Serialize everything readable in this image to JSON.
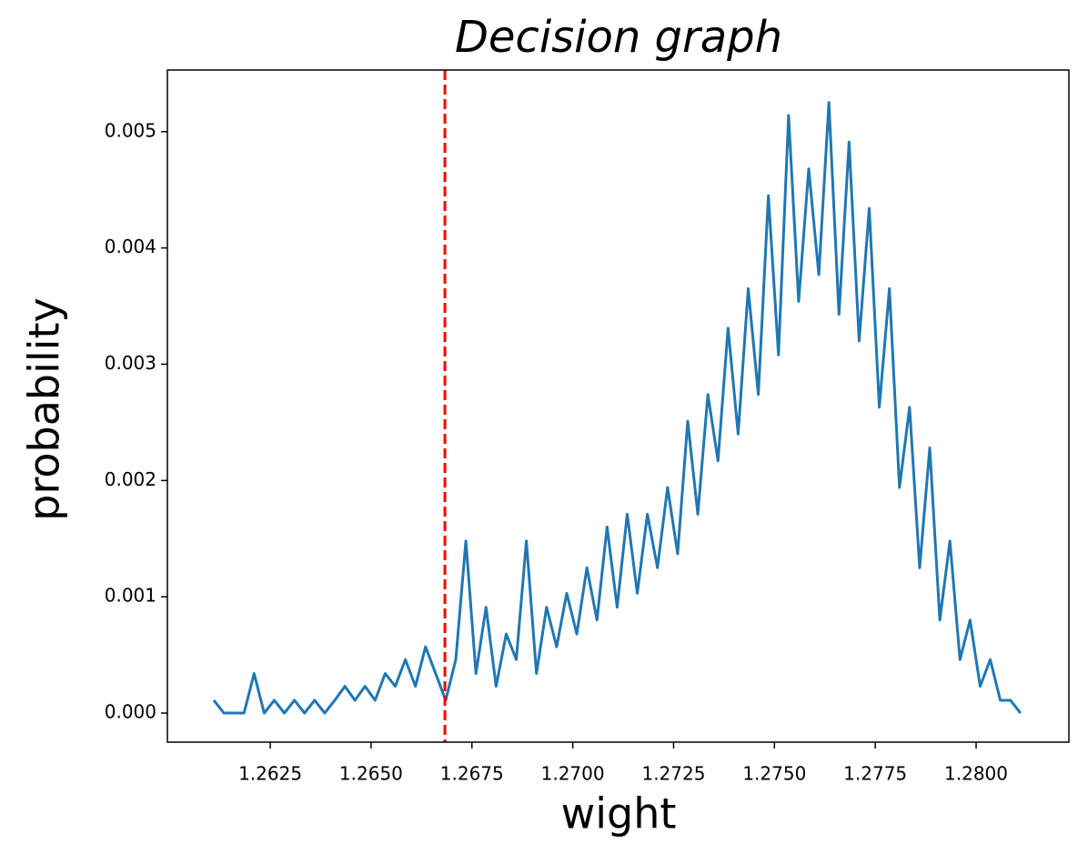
{
  "chart_data": {
    "type": "line",
    "title": "Decision graph",
    "xlabel": "wight",
    "ylabel": "probability",
    "color": "#1f77b4",
    "x": [
      1.2611,
      1.26135,
      1.2616,
      1.26185,
      1.2621,
      1.26235,
      1.2626,
      1.26285,
      1.2631,
      1.26335,
      1.2636,
      1.26385,
      1.2641,
      1.26435,
      1.2646,
      1.26485,
      1.2651,
      1.26535,
      1.2656,
      1.26585,
      1.2661,
      1.26635,
      1.2666,
      1.26685,
      1.2671,
      1.26735,
      1.2676,
      1.26785,
      1.2681,
      1.26835,
      1.2686,
      1.26885,
      1.2691,
      1.26935,
      1.2696,
      1.26985,
      1.2701,
      1.27035,
      1.2706,
      1.27085,
      1.2711,
      1.27135,
      1.2716,
      1.27185,
      1.2721,
      1.27235,
      1.2726,
      1.27285,
      1.2731,
      1.27335,
      1.2736,
      1.27385,
      1.2741,
      1.27435,
      1.2746,
      1.27485,
      1.2751,
      1.27535,
      1.2756,
      1.27585,
      1.2761,
      1.27635,
      1.2766,
      1.27685,
      1.2771,
      1.27735,
      1.2776,
      1.27785,
      1.2781,
      1.27835,
      1.2786,
      1.27885,
      1.2791,
      1.27935,
      1.2796,
      1.27985,
      1.2801,
      1.28035,
      1.2806,
      1.28085,
      1.2811
    ],
    "values": [
      0.00011,
      0,
      0,
      0,
      0.00034,
      0,
      0.00011,
      0,
      0.00011,
      0,
      0.00011,
      0,
      0.00011,
      0.00023,
      0.00011,
      0.00023,
      0.00011,
      0.00034,
      0.00023,
      0.00046,
      0.00023,
      0.00057,
      0.00034,
      0.00011,
      0.00046,
      0.00148,
      0.00034,
      0.00091,
      0.00023,
      0.00068,
      0.00046,
      0.00148,
      0.00034,
      0.00091,
      0.00057,
      0.00103,
      0.00068,
      0.00125,
      0.0008,
      0.0016,
      0.00091,
      0.00171,
      0.00103,
      0.00171,
      0.00125,
      0.00194,
      0.00137,
      0.00251,
      0.00171,
      0.00274,
      0.00217,
      0.00331,
      0.0024,
      0.00365,
      0.00274,
      0.00445,
      0.00308,
      0.00514,
      0.00354,
      0.00468,
      0.00377,
      0.00525,
      0.00343,
      0.00491,
      0.0032,
      0.00434,
      0.00263,
      0.00365,
      0.00194,
      0.00263,
      0.00125,
      0.00228,
      0.0008,
      0.00148,
      0.00046,
      0.0008,
      0.00023,
      0.00046,
      0.00011,
      0.00011,
      0
    ],
    "xlim": [
      1.25995,
      1.2823
    ],
    "ylim": [
      -0.00025,
      0.00553
    ],
    "xticks": [
      1.2625,
      {
        "value": 1.265,
        "label": "1.2650"
      },
      1.2675,
      {
        "value": 1.27,
        "label": "1.2700"
      },
      1.2725,
      {
        "value": 1.275,
        "label": "1.2750"
      },
      1.2775,
      {
        "value": 1.28,
        "label": "1.2800"
      }
    ],
    "yticks": [
      {
        "value": 0,
        "label": "0.000"
      },
      0.001,
      0.002,
      0.003,
      0.004,
      0.005
    ],
    "vline": {
      "x": 1.26683,
      "color": "#ff0000"
    }
  }
}
